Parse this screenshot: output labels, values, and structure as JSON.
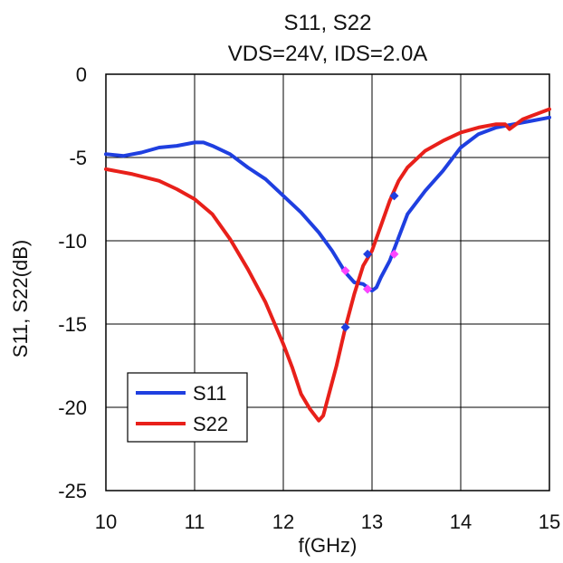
{
  "chart_data": {
    "type": "line",
    "title": "S11, S22",
    "subtitle": "VDS=24V, IDS=2.0A",
    "xlabel": "f(GHz)",
    "ylabel": "S11, S22(dB)",
    "xlim": [
      10,
      15
    ],
    "ylim": [
      -25,
      0
    ],
    "x_ticks": [
      "10",
      "11",
      "12",
      "13",
      "14",
      "15"
    ],
    "y_ticks": [
      "0",
      "-5",
      "-10",
      "-15",
      "-20",
      "-25"
    ],
    "grid": true,
    "legend_position": "bottom-left",
    "series": [
      {
        "name": "S11",
        "color": "#1f3fe0",
        "x": [
          10.0,
          10.2,
          10.4,
          10.6,
          10.8,
          11.0,
          11.1,
          11.2,
          11.4,
          11.6,
          11.8,
          12.0,
          12.2,
          12.4,
          12.55,
          12.7,
          12.8,
          12.9,
          13.0,
          13.05,
          13.1,
          13.2,
          13.3,
          13.4,
          13.6,
          13.8,
          14.0,
          14.2,
          14.4,
          14.6,
          14.8,
          15.0
        ],
        "y": [
          -4.8,
          -4.9,
          -4.7,
          -4.4,
          -4.3,
          -4.1,
          -4.1,
          -4.3,
          -4.8,
          -5.6,
          -6.3,
          -7.3,
          -8.3,
          -9.5,
          -10.6,
          -11.9,
          -12.5,
          -12.6,
          -13.0,
          -12.8,
          -12.2,
          -11.2,
          -9.8,
          -8.4,
          -7.0,
          -5.8,
          -4.4,
          -3.6,
          -3.2,
          -3.0,
          -2.8,
          -2.6
        ]
      },
      {
        "name": "S22",
        "color": "#e8201a",
        "x": [
          10.0,
          10.3,
          10.6,
          10.8,
          11.0,
          11.2,
          11.4,
          11.6,
          11.8,
          12.0,
          12.1,
          12.2,
          12.3,
          12.4,
          12.45,
          12.5,
          12.6,
          12.7,
          12.8,
          12.9,
          13.0,
          13.1,
          13.2,
          13.3,
          13.4,
          13.6,
          13.8,
          14.0,
          14.2,
          14.4,
          14.5,
          14.55,
          14.6,
          14.7,
          14.8,
          15.0
        ],
        "y": [
          -5.7,
          -6.0,
          -6.4,
          -6.9,
          -7.5,
          -8.4,
          -9.9,
          -11.7,
          -13.7,
          -16.2,
          -17.6,
          -19.2,
          -20.1,
          -20.8,
          -20.5,
          -19.5,
          -17.5,
          -15.2,
          -13.2,
          -11.5,
          -10.6,
          -9.1,
          -7.6,
          -6.4,
          -5.6,
          -4.6,
          -4.0,
          -3.5,
          -3.2,
          -3.0,
          -3.0,
          -3.3,
          -3.1,
          -2.7,
          -2.5,
          -2.1
        ]
      }
    ],
    "markers": [
      {
        "x": 12.7,
        "y": -15.2,
        "color": "#1f3fe0"
      },
      {
        "x": 12.95,
        "y": -12.9,
        "color": "#1f3fe0"
      },
      {
        "x": 12.95,
        "y": -10.8,
        "color": "#1f3fe0"
      },
      {
        "x": 13.25,
        "y": -7.3,
        "color": "#1f3fe0"
      },
      {
        "x": 12.7,
        "y": -11.8,
        "color": "#ff44ff"
      },
      {
        "x": 12.95,
        "y": -12.9,
        "color": "#ff44ff"
      },
      {
        "x": 13.25,
        "y": -10.8,
        "color": "#ff44ff"
      }
    ]
  }
}
